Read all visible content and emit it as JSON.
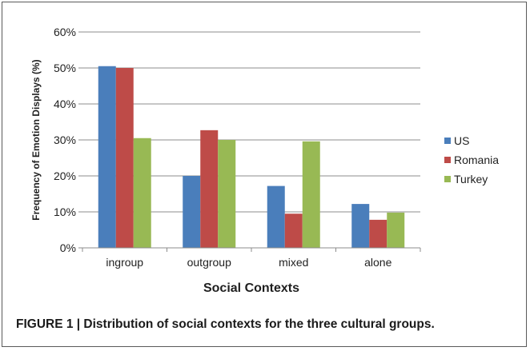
{
  "caption": "FIGURE 1 | Distribution of social contexts for the three cultural groups.",
  "chart_data": {
    "type": "bar",
    "title": "",
    "xlabel": "Social Contexts",
    "ylabel": "Frequency of Emotion Displays (%)",
    "categories": [
      "ingroup",
      "outgroup",
      "mixed",
      "alone"
    ],
    "ylim": [
      0,
      60
    ],
    "yticks": [
      0,
      10,
      20,
      30,
      40,
      50,
      60
    ],
    "ytick_labels": [
      "0%",
      "10%",
      "20%",
      "30%",
      "40%",
      "50%",
      "60%"
    ],
    "grid": true,
    "legend_position": "right",
    "series": [
      {
        "name": "US",
        "color": "#4a7ebb",
        "values": [
          50.5,
          20,
          17.2,
          12.2
        ]
      },
      {
        "name": "Romania",
        "color": "#be4b48",
        "values": [
          50,
          32.7,
          9.5,
          7.8
        ]
      },
      {
        "name": "Turkey",
        "color": "#98b954",
        "values": [
          30.5,
          30,
          29.6,
          9.8
        ]
      }
    ]
  }
}
